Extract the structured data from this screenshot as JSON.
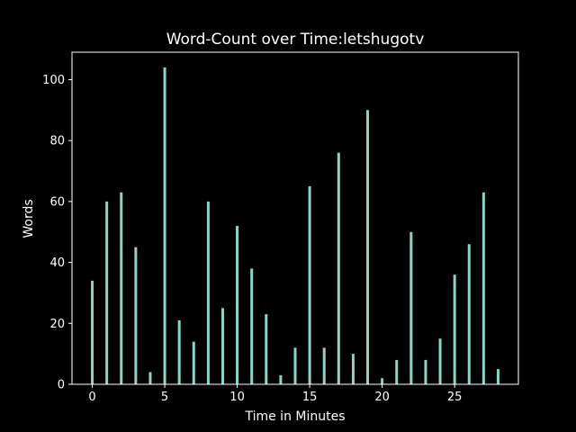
{
  "chart_data": {
    "type": "bar",
    "title": "Word-Count over Time:letshugotv",
    "xlabel": "Time in Minutes",
    "ylabel": "Words",
    "x": [
      0,
      1,
      2,
      3,
      4,
      5,
      6,
      7,
      8,
      9,
      10,
      11,
      12,
      13,
      14,
      15,
      16,
      17,
      18,
      19,
      20,
      21,
      22,
      23,
      24,
      25,
      26,
      27,
      28
    ],
    "values": [
      34,
      60,
      63,
      45,
      4,
      104,
      21,
      14,
      60,
      25,
      52,
      38,
      23,
      3,
      12,
      65,
      12,
      76,
      10,
      90,
      2,
      8,
      50,
      8,
      15,
      36,
      46,
      63,
      5
    ],
    "xlim": [
      -1.4,
      29.4
    ],
    "ylim": [
      0,
      109
    ],
    "xticks": [
      0,
      5,
      10,
      15,
      20,
      25
    ],
    "yticks": [
      0,
      20,
      40,
      60,
      80,
      100
    ],
    "bar_color": "#8dd3c7",
    "background": "#000000",
    "axis_color": "#ffffff",
    "grid": false
  }
}
